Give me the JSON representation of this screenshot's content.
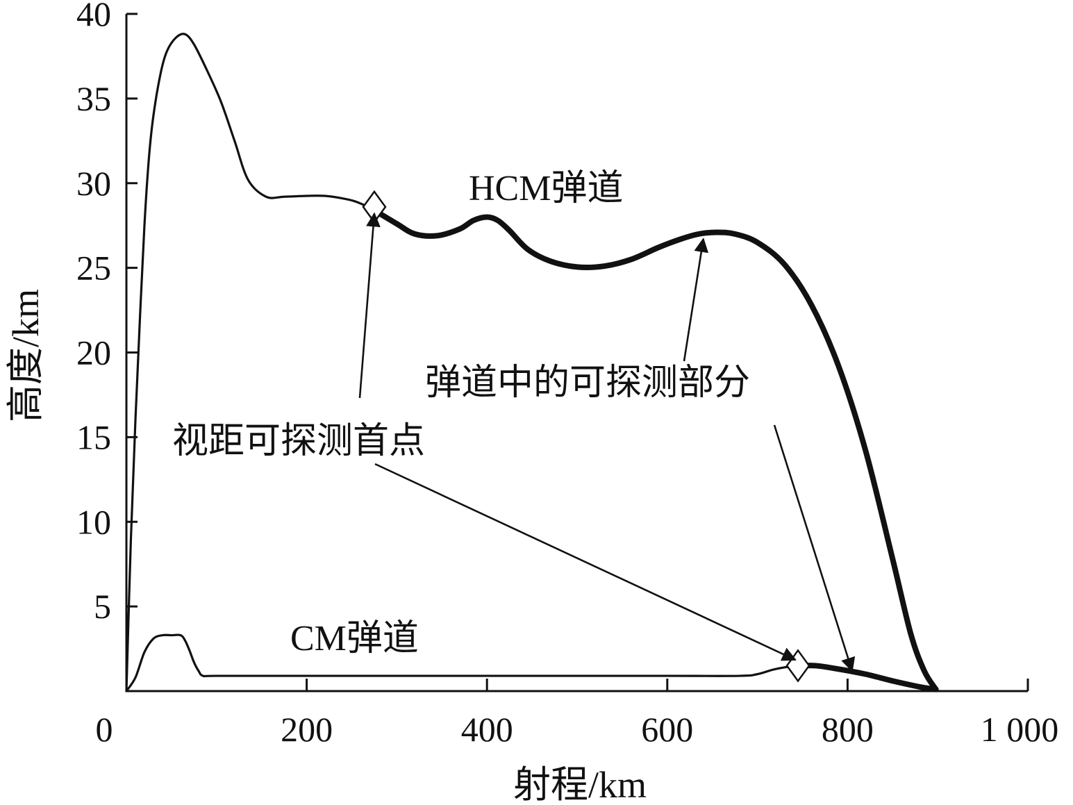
{
  "chart_data": {
    "type": "line",
    "title": "",
    "xlabel": "射程/km",
    "ylabel": "高度/km",
    "xlim": [
      0,
      1000
    ],
    "ylim": [
      0,
      40
    ],
    "x_ticks": [
      0,
      200,
      400,
      600,
      800,
      1000
    ],
    "x_tick_labels": [
      "0",
      "200",
      "400",
      "600",
      "800",
      "1 000"
    ],
    "y_ticks": [
      5,
      10,
      15,
      20,
      25,
      30,
      35,
      40
    ],
    "y_tick_labels": [
      "5",
      "10",
      "15",
      "20",
      "25",
      "30",
      "35",
      "40"
    ],
    "grid": false,
    "legend": "none",
    "series": [
      {
        "name": "HCM弹道",
        "x": [
          0,
          5,
          10,
          15,
          20,
          25,
          30,
          38,
          45,
          55,
          65,
          75,
          90,
          105,
          120,
          135,
          155,
          175,
          200,
          220,
          240,
          255,
          275,
          300,
          320,
          345,
          370,
          385,
          400,
          412,
          425,
          445,
          470,
          500,
          530,
          560,
          590,
          615,
          635,
          655,
          675,
          700,
          730,
          760,
          790,
          820,
          850,
          870,
          885,
          898
        ],
        "y": [
          0,
          9,
          16,
          22,
          27.5,
          31.5,
          34,
          36.5,
          37.8,
          38.6,
          38.8,
          38.2,
          36.6,
          34.8,
          32.5,
          30.2,
          29.2,
          29.2,
          29.25,
          29.25,
          29.1,
          28.9,
          28.4,
          27.6,
          27.0,
          26.9,
          27.3,
          27.8,
          28.0,
          27.8,
          27.2,
          26.1,
          25.4,
          25.05,
          25.1,
          25.5,
          26.2,
          26.7,
          27.0,
          27.1,
          27.0,
          26.5,
          25.2,
          22.8,
          19.2,
          14.2,
          7.8,
          3.4,
          1.2,
          0.1
        ]
      },
      {
        "name": "CM弹道",
        "x": [
          0,
          10,
          20,
          30,
          40,
          50,
          60,
          65,
          70,
          75,
          80,
          85,
          100,
          200,
          300,
          400,
          500,
          600,
          680,
          700,
          720,
          745,
          765,
          790,
          820,
          850,
          880,
          898
        ],
        "y": [
          0,
          0.8,
          2.3,
          3.1,
          3.3,
          3.3,
          3.3,
          3.0,
          2.4,
          1.7,
          1.2,
          0.9,
          0.9,
          0.9,
          0.9,
          0.9,
          0.9,
          0.9,
          0.9,
          1.0,
          1.3,
          1.5,
          1.5,
          1.3,
          1.0,
          0.6,
          0.25,
          0.1
        ]
      }
    ],
    "detectable_segments": [
      {
        "series": "HCM弹道",
        "x_from": 275,
        "x_to": 898
      },
      {
        "series": "CM弹道",
        "x_from": 745,
        "x_to": 898
      }
    ],
    "markers": [
      {
        "series": "HCM弹道",
        "shape": "diamond",
        "x": 275,
        "y": 28.6
      },
      {
        "series": "CM弹道",
        "shape": "diamond",
        "x": 745,
        "y": 1.5
      }
    ],
    "annotations": [
      {
        "text": "HCM弹道"
      },
      {
        "text": "CM弹道"
      },
      {
        "text": "视距可探测首点"
      },
      {
        "text": "弹道中的可探测部分"
      }
    ]
  }
}
